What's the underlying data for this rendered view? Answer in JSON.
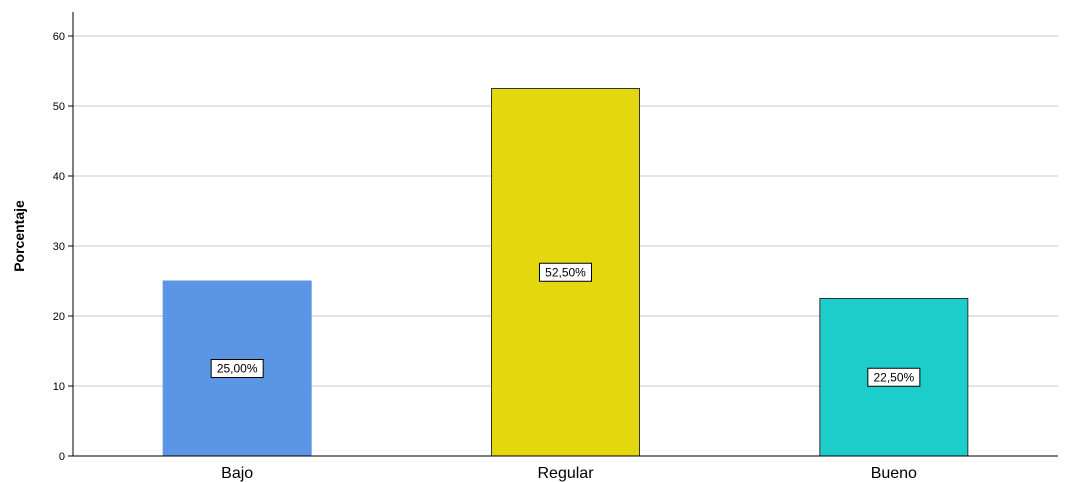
{
  "chart_data": {
    "type": "bar",
    "title": "",
    "xlabel": "",
    "ylabel": "Porcentaje",
    "ylim": [
      0,
      63
    ],
    "yticks": [
      0,
      10,
      20,
      30,
      40,
      50,
      60
    ],
    "grid": true,
    "categories": [
      "Bajo",
      "Regular",
      "Bueno"
    ],
    "values": [
      25.0,
      52.5,
      22.5
    ],
    "data_labels": [
      "25,00%",
      "52,50%",
      "22,50%"
    ],
    "colors": [
      "#5a96e3",
      "#e2d80d",
      "#1ccdcc"
    ],
    "bar_outline_colors": [
      "#5a96e3",
      "#333333",
      "#333333"
    ]
  }
}
